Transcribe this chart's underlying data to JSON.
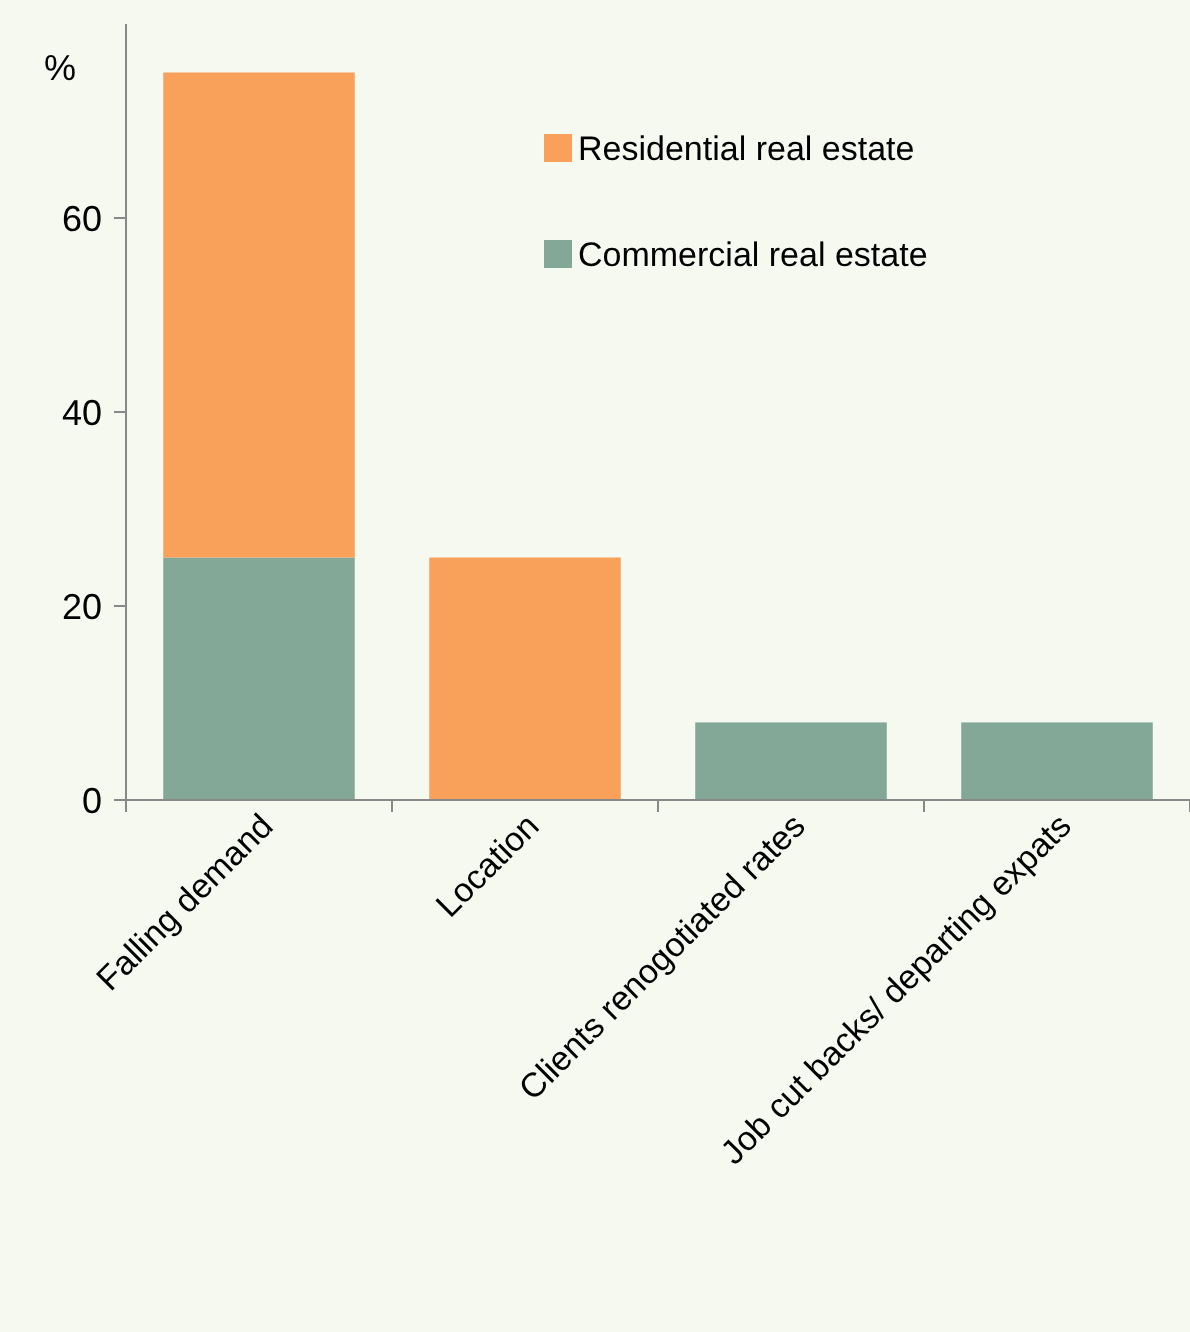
{
  "chart_data": {
    "type": "bar",
    "ylabel": "%",
    "categories": [
      "Falling demand",
      "Location",
      "Clients renogotiated rates",
      "Job cut backs/ departing expats"
    ],
    "stacked": true,
    "series": [
      {
        "name": "Commercial real estate",
        "color": "#84a898",
        "values": [
          25,
          0,
          8,
          8
        ]
      },
      {
        "name": "Residential real estate",
        "color": "#f9a05a",
        "values": [
          50,
          25,
          0,
          0
        ]
      }
    ],
    "ylim": [
      0,
      80
    ],
    "yticks": [
      0,
      20,
      40,
      60
    ],
    "grid": false,
    "legend": "top right"
  }
}
